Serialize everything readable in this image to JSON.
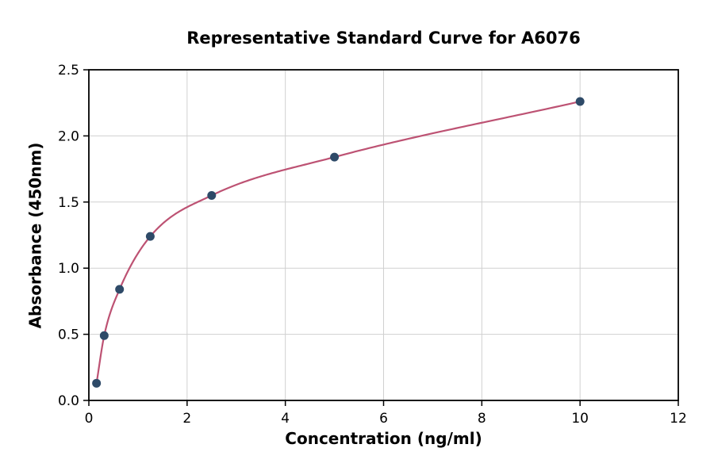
{
  "chart_data": {
    "type": "scatter",
    "title": "Representative Standard Curve for A6076",
    "xlabel": "Concentration (ng/ml)",
    "ylabel": "Absorbance (450nm)",
    "xlim": [
      0,
      12
    ],
    "ylim": [
      0,
      2.5
    ],
    "xticks": [
      0,
      2,
      4,
      6,
      8,
      10,
      12
    ],
    "xtick_labels": [
      "0",
      "2",
      "4",
      "6",
      "8",
      "10",
      "12"
    ],
    "yticks": [
      0.0,
      0.5,
      1.0,
      1.5,
      2.0,
      2.5
    ],
    "ytick_labels": [
      "0.0",
      "0.5",
      "1.0",
      "1.5",
      "2.0",
      "2.5"
    ],
    "grid": true,
    "legend": "none",
    "points": {
      "x": [
        0.156,
        0.3125,
        0.625,
        1.25,
        2.5,
        5,
        10
      ],
      "y": [
        0.13,
        0.49,
        0.84,
        1.24,
        1.55,
        1.84,
        2.26
      ]
    },
    "fit_curve": "smooth curve through data points",
    "colors": {
      "curve": "#bd5273",
      "points": "#2e4a68",
      "grid": "#d0d0d0",
      "axis": "#000000",
      "background": "#ffffff"
    }
  }
}
